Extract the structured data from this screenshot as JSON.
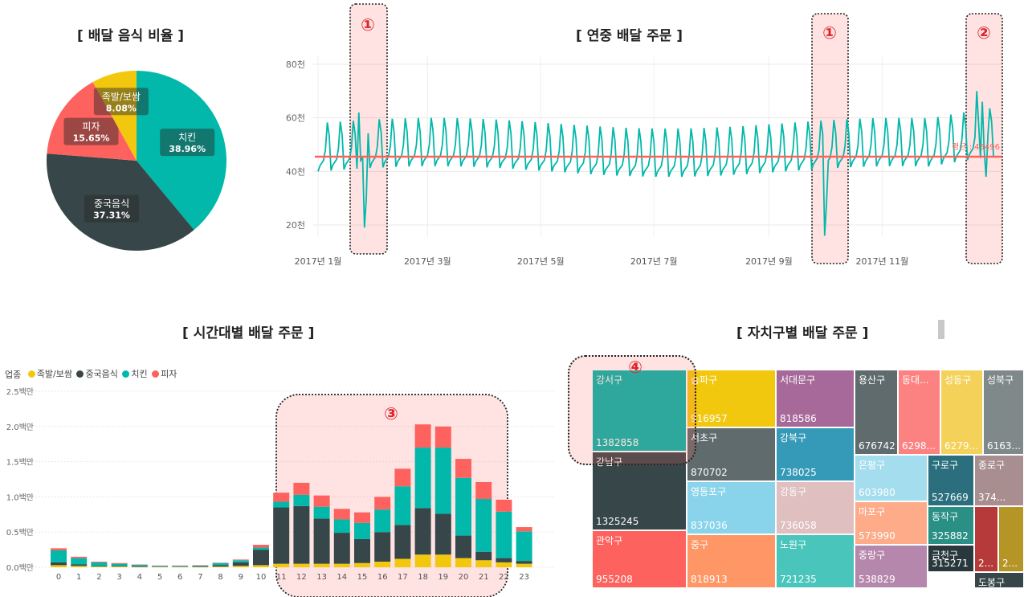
{
  "pie": {
    "title": "[ 배달 음식 비율 ]",
    "chart_data": {
      "type": "pie",
      "slices": [
        {
          "name": "치킨",
          "value": 38.96,
          "label": "38.96%",
          "color": "#01B8AA"
        },
        {
          "name": "중국음식",
          "value": 37.31,
          "label": "37.31%",
          "color": "#374649"
        },
        {
          "name": "피자",
          "value": 15.65,
          "label": "15.65%",
          "color": "#FD625E"
        },
        {
          "name": "족발/보쌈",
          "value": 8.08,
          "label": "8.08%",
          "color": "#F2C80F"
        }
      ]
    }
  },
  "line": {
    "title": "[ 연중 배달 주문 ]",
    "chart_data": {
      "type": "line",
      "ylim": [
        10,
        85
      ],
      "yticks": [
        {
          "v": 20,
          "label": "20천"
        },
        {
          "v": 40,
          "label": "40천"
        },
        {
          "v": 60,
          "label": "60천"
        },
        {
          "v": 80,
          "label": "80천"
        }
      ],
      "xticks": [
        {
          "day": 0,
          "label": "2017년 1월"
        },
        {
          "day": 59,
          "label": "2017년 3월"
        },
        {
          "day": 120,
          "label": "2017년 5월"
        },
        {
          "day": 181,
          "label": "2017년 7월"
        },
        {
          "day": 243,
          "label": "2017년 9월"
        },
        {
          "day": 304,
          "label": "2017년 11월"
        }
      ],
      "average": 45496,
      "average_label": "평균 : 45496",
      "color": "#01B8AA",
      "avg_color": "#FD625E",
      "weekly_pattern": [
        40,
        42,
        43,
        44,
        48,
        58,
        53
      ],
      "anomalies": [
        {
          "day": 25,
          "value": 19
        },
        {
          "day": 26,
          "value": 30
        },
        {
          "day": 22,
          "value": 62
        },
        {
          "day": 273,
          "value": 16
        },
        {
          "day": 274,
          "value": 28
        },
        {
          "day": 270,
          "value": 48
        },
        {
          "day": 355,
          "value": 70
        },
        {
          "day": 358,
          "value": 66
        },
        {
          "day": 360,
          "value": 38
        }
      ]
    },
    "markers": [
      {
        "label": "①"
      },
      {
        "label": "①"
      },
      {
        "label": "②"
      }
    ]
  },
  "bar": {
    "title": "[ 시간대별 배달 주문 ]",
    "legend_title": "업종",
    "marker": "③",
    "chart_data": {
      "type": "bar",
      "categories": [
        "0",
        "1",
        "2",
        "3",
        "4",
        "5",
        "6",
        "7",
        "8",
        "9",
        "10",
        "11",
        "12",
        "13",
        "14",
        "15",
        "16",
        "17",
        "18",
        "19",
        "20",
        "21",
        "22",
        "23"
      ],
      "ylim": [
        0,
        2.5
      ],
      "yticks": [
        {
          "v": 0,
          "label": "0.0백만"
        },
        {
          "v": 0.5,
          "label": "0.5백만"
        },
        {
          "v": 1.0,
          "label": "1.0백만"
        },
        {
          "v": 1.5,
          "label": "1.5백만"
        },
        {
          "v": 2.0,
          "label": "2.0백만"
        },
        {
          "v": 2.5,
          "label": "2.5백만"
        }
      ],
      "series": [
        {
          "name": "족발/보쌈",
          "color": "#F2C80F",
          "values": [
            0.03,
            0.02,
            0.01,
            0.01,
            0.005,
            0.005,
            0.005,
            0.005,
            0.01,
            0.02,
            0.03,
            0.05,
            0.05,
            0.05,
            0.05,
            0.06,
            0.08,
            0.12,
            0.18,
            0.18,
            0.13,
            0.1,
            0.07,
            0.05
          ]
        },
        {
          "name": "중국음식",
          "color": "#374649",
          "values": [
            0.04,
            0.02,
            0.01,
            0.01,
            0.01,
            0.005,
            0.005,
            0.01,
            0.02,
            0.05,
            0.22,
            0.8,
            0.82,
            0.64,
            0.44,
            0.34,
            0.42,
            0.48,
            0.66,
            0.58,
            0.32,
            0.12,
            0.06,
            0.04
          ]
        },
        {
          "name": "치킨",
          "color": "#01B8AA",
          "values": [
            0.17,
            0.09,
            0.05,
            0.03,
            0.02,
            0.01,
            0.01,
            0.01,
            0.03,
            0.03,
            0.03,
            0.08,
            0.16,
            0.17,
            0.19,
            0.23,
            0.32,
            0.55,
            0.86,
            0.94,
            0.82,
            0.75,
            0.66,
            0.42
          ]
        },
        {
          "name": "피자",
          "color": "#FD625E",
          "values": [
            0.03,
            0.02,
            0.01,
            0.01,
            0.005,
            0.005,
            0.005,
            0.005,
            0.005,
            0.01,
            0.04,
            0.13,
            0.17,
            0.16,
            0.15,
            0.15,
            0.18,
            0.25,
            0.33,
            0.3,
            0.27,
            0.24,
            0.17,
            0.06
          ]
        }
      ]
    }
  },
  "treemap": {
    "title": "[ 자치구별 배달 주문 ]",
    "marker": "④",
    "cells": [
      {
        "name": "강서구",
        "value": "1382858",
        "color": "#01B8AA"
      },
      {
        "name": "강남구",
        "value": "1325245",
        "color": "#374649"
      },
      {
        "name": "관악구",
        "value": "955208",
        "color": "#FD625E"
      },
      {
        "name": "송파구",
        "value": "916957",
        "color": "#F2C80F"
      },
      {
        "name": "서초구",
        "value": "870702",
        "color": "#5F6B6D"
      },
      {
        "name": "영등포구",
        "value": "837036",
        "color": "#8AD4EB"
      },
      {
        "name": "중구",
        "value": "818913",
        "color": "#FE9666"
      },
      {
        "name": "서대문구",
        "value": "818586",
        "color": "#A66999"
      },
      {
        "name": "강북구",
        "value": "738025",
        "color": "#3599B8"
      },
      {
        "name": "강동구",
        "value": "736058",
        "color": "#DFBFBF"
      },
      {
        "name": "노원구",
        "value": "721235",
        "color": "#4AC5BB"
      },
      {
        "name": "용산구",
        "value": "676742",
        "color": "#5F6B6D"
      },
      {
        "name": "동대...",
        "value": "6298...",
        "color": "#FB8281"
      },
      {
        "name": "성동구",
        "value": "6279...",
        "color": "#F4D25A"
      },
      {
        "name": "성북구",
        "value": "6163...",
        "color": "#7F898A"
      },
      {
        "name": "은평구",
        "value": "603980",
        "color": "#A4DDEE"
      },
      {
        "name": "구로구",
        "value": "527669",
        "color": "#2B6F7E"
      },
      {
        "name": "종로구",
        "value": "374...",
        "color": "#A88E8E"
      },
      {
        "name": "마포구",
        "value": "573990",
        "color": "#FDAB89"
      },
      {
        "name": "동작구",
        "value": "325882",
        "color": "#2A8F85"
      },
      {
        "name": "중랑구",
        "value": "538829",
        "color": "#B687AC"
      },
      {
        "name": "금천구",
        "value": "315271",
        "color": "#28383C"
      },
      {
        "name": "",
        "value": "2...",
        "color": "#B73A3A"
      },
      {
        "name": "",
        "value": "2...",
        "color": "#B59525"
      },
      {
        "name": "도봉구",
        "value": "",
        "color": "#374649"
      }
    ]
  }
}
